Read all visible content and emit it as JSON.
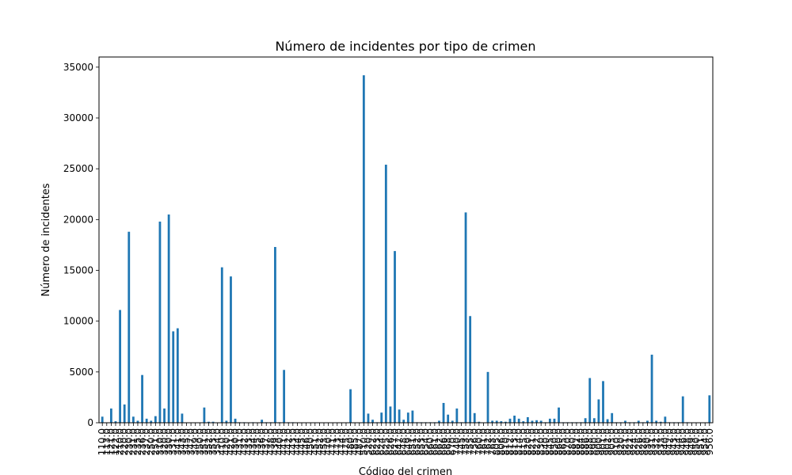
{
  "chart_data": {
    "type": "bar",
    "title": "Número de incidentes por tipo de crimen",
    "xlabel": "Código del crimen",
    "ylabel": "Número de incidentes",
    "ylim": [
      0,
      36000
    ],
    "yticks": [
      0,
      5000,
      10000,
      15000,
      20000,
      25000,
      30000,
      35000
    ],
    "ytick_labels": [
      "0",
      "5000",
      "10000",
      "15000",
      "20000",
      "25000",
      "30000",
      "35000"
    ],
    "grid": false,
    "bar_color": "#1f77b4",
    "categories": [
      "110.0",
      "113.0",
      "121.0",
      "122.0",
      "210.0",
      "220.0",
      "230.0",
      "231.0",
      "235.0",
      "236.0",
      "237.0",
      "250.0",
      "251.0",
      "310.0",
      "320.0",
      "330.0",
      "331.0",
      "341.0",
      "343.0",
      "345.0",
      "347.0",
      "349.0",
      "350.0",
      "351.0",
      "352.0",
      "353.0",
      "354.0",
      "410.0",
      "420.0",
      "421.0",
      "430.0",
      "431.0",
      "432.0",
      "433.0",
      "434.0",
      "435.0",
      "436.0",
      "437.0",
      "438.0",
      "439.0",
      "440.0",
      "441.0",
      "442.0",
      "443.0",
      "444.0",
      "445.0",
      "446.0",
      "450.0",
      "451.0",
      "452.0",
      "453.0",
      "470.0",
      "471.0",
      "473.0",
      "474.0",
      "475.0",
      "480.0",
      "485.0",
      "487.0",
      "510.0",
      "520.0",
      "622.0",
      "623.0",
      "624.0",
      "625.0",
      "626.0",
      "627.0",
      "647.0",
      "648.0",
      "649.0",
      "651.0",
      "652.0",
      "653.0",
      "654.0",
      "660.0",
      "661.0",
      "662.0",
      "666.0",
      "668.0",
      "670.0",
      "740.0",
      "745.0",
      "753.0",
      "755.0",
      "756.0",
      "760.0",
      "761.0",
      "762.0",
      "763.0",
      "805.0",
      "806.0",
      "810.0",
      "812.0",
      "813.0",
      "814.0",
      "815.0",
      "820.0",
      "821.0",
      "822.0",
      "830.0",
      "840.0",
      "845.0",
      "850.0",
      "860.0",
      "865.0",
      "870.0",
      "880.0",
      "882.0",
      "884.0",
      "886.0",
      "888.0",
      "890.0",
      "900.0",
      "901.0",
      "902.0",
      "903.0",
      "910.0",
      "920.0",
      "921.0",
      "922.0",
      "924.0",
      "926.0",
      "928.0",
      "930.0",
      "931.0",
      "932.0",
      "933.0",
      "940.0",
      "942.0",
      "943.0",
      "944.0",
      "946.0",
      "948.0",
      "949.0",
      "950.0",
      "951.0",
      "954.0",
      "956.0"
    ],
    "values": [
      600,
      0,
      1400,
      150,
      11100,
      1800,
      18800,
      600,
      200,
      4700,
      400,
      200,
      650,
      19800,
      1400,
      20500,
      9000,
      9300,
      900,
      0,
      0,
      0,
      0,
      1500,
      100,
      100,
      0,
      15300,
      200,
      14400,
      400,
      50,
      50,
      0,
      50,
      0,
      300,
      50,
      50,
      17300,
      50,
      5200,
      50,
      50,
      30,
      30,
      30,
      30,
      30,
      30,
      30,
      30,
      30,
      30,
      30,
      30,
      3300,
      0,
      0,
      34200,
      900,
      300,
      50,
      1000,
      25400,
      1600,
      16900,
      1300,
      300,
      1000,
      1200,
      50,
      50,
      50,
      50,
      50,
      200,
      1950,
      800,
      200,
      1400,
      50,
      20700,
      10500,
      950,
      100,
      0,
      5000,
      200,
      200,
      150,
      100,
      400,
      700,
      400,
      150,
      550,
      200,
      250,
      200,
      50,
      400,
      400,
      1500,
      50,
      50,
      50,
      50,
      50,
      450,
      4400,
      450,
      2300,
      4100,
      350,
      950,
      50,
      50,
      200,
      50,
      50,
      200,
      50,
      200,
      6700,
      200,
      100,
      600,
      50,
      50,
      50,
      2600,
      50,
      30,
      30,
      30,
      30,
      2700
    ]
  }
}
